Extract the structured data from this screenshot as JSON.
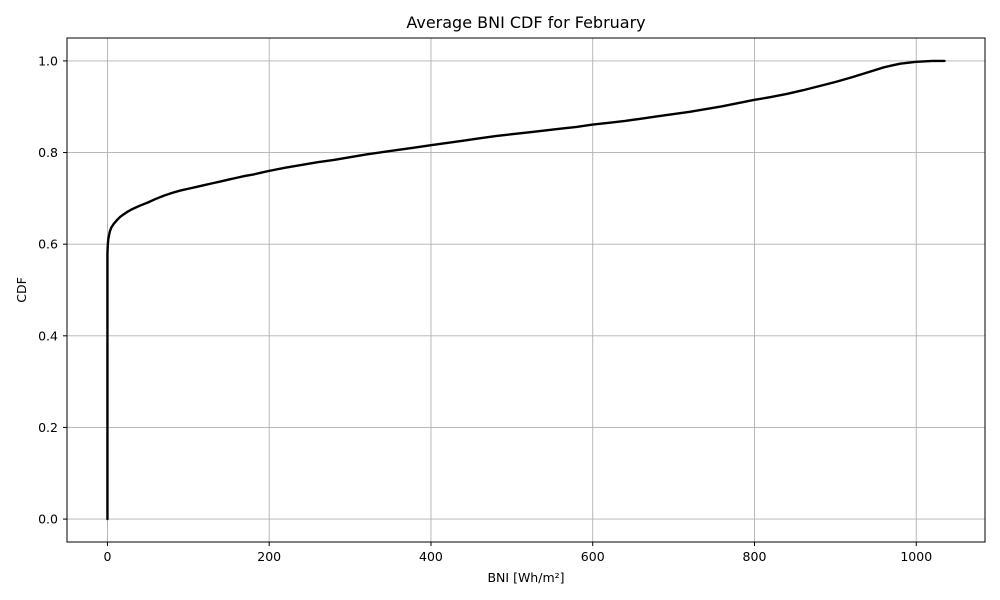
{
  "chart_data": {
    "type": "line",
    "title": "Average BNI CDF for February",
    "xlabel": "BNI [Wh/m²]",
    "ylabel": "CDF",
    "xlim": [
      -50,
      1085
    ],
    "ylim": [
      -0.05,
      1.05
    ],
    "xticks": [
      0,
      200,
      400,
      600,
      800,
      1000
    ],
    "yticks": [
      0.0,
      0.2,
      0.4,
      0.6,
      0.8,
      1.0
    ],
    "xtick_labels": [
      "0",
      "200",
      "400",
      "600",
      "800",
      "1000"
    ],
    "ytick_labels": [
      "0.0",
      "0.2",
      "0.4",
      "0.6",
      "0.8",
      "1.0"
    ],
    "grid": true,
    "line_color": "#000000",
    "series": [
      {
        "x": [
          0,
          0,
          0.5,
          1,
          2,
          3,
          5,
          8,
          12,
          16,
          20,
          25,
          30,
          40,
          50,
          60,
          70,
          80,
          90,
          100,
          110,
          120,
          130,
          140,
          150,
          160,
          170,
          180,
          190,
          200,
          220,
          240,
          260,
          280,
          300,
          320,
          340,
          360,
          380,
          400,
          420,
          440,
          460,
          480,
          500,
          520,
          540,
          560,
          580,
          600,
          620,
          640,
          660,
          680,
          700,
          720,
          740,
          760,
          780,
          800,
          820,
          840,
          860,
          880,
          900,
          920,
          940,
          960,
          980,
          1000,
          1020,
          1035
        ],
        "y": [
          0.0,
          0.58,
          0.6,
          0.61,
          0.62,
          0.628,
          0.637,
          0.645,
          0.653,
          0.66,
          0.665,
          0.671,
          0.676,
          0.684,
          0.691,
          0.699,
          0.706,
          0.712,
          0.717,
          0.721,
          0.725,
          0.729,
          0.733,
          0.737,
          0.741,
          0.745,
          0.749,
          0.752,
          0.756,
          0.76,
          0.767,
          0.773,
          0.779,
          0.784,
          0.79,
          0.796,
          0.801,
          0.806,
          0.811,
          0.816,
          0.821,
          0.826,
          0.831,
          0.836,
          0.84,
          0.844,
          0.848,
          0.852,
          0.856,
          0.861,
          0.865,
          0.869,
          0.874,
          0.879,
          0.884,
          0.889,
          0.895,
          0.901,
          0.908,
          0.915,
          0.921,
          0.928,
          0.936,
          0.945,
          0.954,
          0.964,
          0.975,
          0.986,
          0.994,
          0.998,
          1.0,
          1.0
        ]
      }
    ]
  }
}
